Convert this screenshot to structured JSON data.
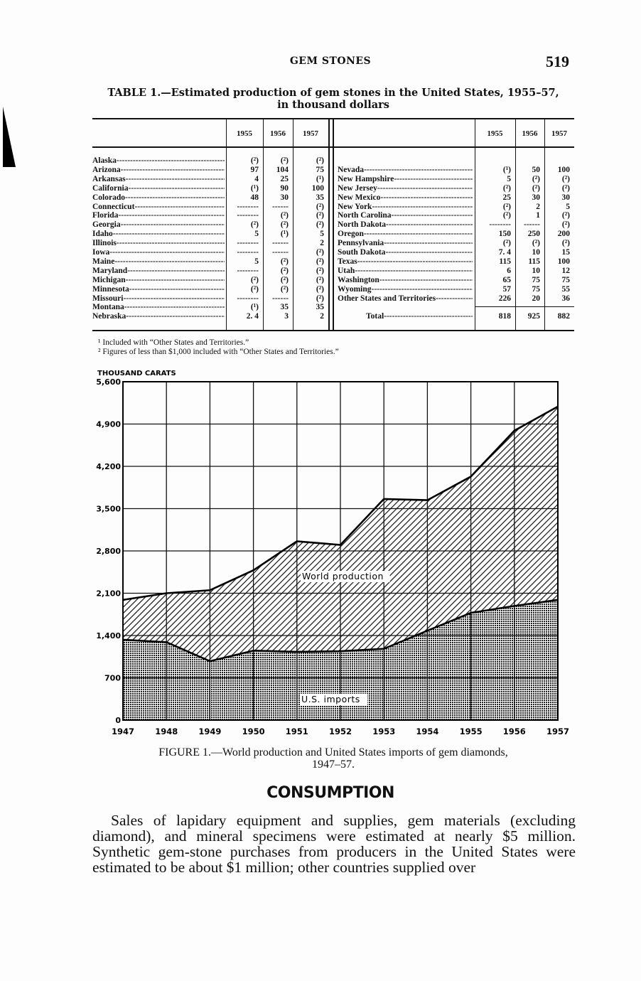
{
  "header": {
    "running_head": "GEM STONES",
    "page_number": "519"
  },
  "table": {
    "title_line1": "TABLE 1.—Estimated production of gem stones in the United States, 1955–57,",
    "title_line2": "in thousand dollars",
    "columns": [
      "1955",
      "1956",
      "1957"
    ],
    "left_rows": [
      {
        "state": "Alaska",
        "v": [
          "(²)",
          "(²)",
          "(²)"
        ]
      },
      {
        "state": "Arizona",
        "v": [
          "97",
          "104",
          "75"
        ]
      },
      {
        "state": "Arkansas",
        "v": [
          "4",
          "25",
          "(¹)"
        ]
      },
      {
        "state": "California",
        "v": [
          "(¹)",
          "90",
          "100"
        ]
      },
      {
        "state": "Colorado",
        "v": [
          "48",
          "30",
          "35"
        ]
      },
      {
        "state": "Connecticut",
        "v": [
          "--------",
          "------",
          "(²)"
        ]
      },
      {
        "state": "Florida",
        "v": [
          "--------",
          "(²)",
          "(²)"
        ]
      },
      {
        "state": "Georgia",
        "v": [
          "(²)",
          "(²)",
          "(²)"
        ]
      },
      {
        "state": "Idaho",
        "v": [
          "5",
          "(¹)",
          "5"
        ]
      },
      {
        "state": "Illinois",
        "v": [
          "--------",
          "------",
          "2"
        ]
      },
      {
        "state": "Iowa",
        "v": [
          "--------",
          "------",
          "(²)"
        ]
      },
      {
        "state": "Maine",
        "v": [
          "5",
          "(²)",
          "(²)"
        ]
      },
      {
        "state": "Maryland",
        "v": [
          "--------",
          "(²)",
          "(²)"
        ]
      },
      {
        "state": "Michigan",
        "v": [
          "(²)",
          "(²)",
          "(²)"
        ]
      },
      {
        "state": "Minnesota",
        "v": [
          "(²)",
          "(²)",
          "(²)"
        ]
      },
      {
        "state": "Missouri",
        "v": [
          "--------",
          "------",
          "(²)"
        ]
      },
      {
        "state": "Montana",
        "v": [
          "(¹)",
          "35",
          "35"
        ]
      },
      {
        "state": "Nebraska",
        "v": [
          "2. 4",
          "3",
          "2"
        ]
      }
    ],
    "right_rows": [
      {
        "state": "Nevada",
        "v": [
          "(¹)",
          "50",
          "100"
        ]
      },
      {
        "state": "New Hampshire",
        "v": [
          "5",
          "(²)",
          "(²)"
        ]
      },
      {
        "state": "New Jersey",
        "v": [
          "(²)",
          "(²)",
          "(²)"
        ]
      },
      {
        "state": "New Mexico",
        "v": [
          "25",
          "30",
          "30"
        ]
      },
      {
        "state": "New York",
        "v": [
          "(²)",
          "2",
          "5"
        ]
      },
      {
        "state": "North Carolina",
        "v": [
          "(²)",
          "1",
          "(²)"
        ]
      },
      {
        "state": "North Dakota",
        "v": [
          "--------",
          "------",
          "(²)"
        ]
      },
      {
        "state": "Oregon",
        "v": [
          "150",
          "250",
          "200"
        ]
      },
      {
        "state": "Pennsylvania",
        "v": [
          "(²)",
          "(²)",
          "(²)"
        ]
      },
      {
        "state": "South Dakota",
        "v": [
          "7. 4",
          "10",
          "15"
        ]
      },
      {
        "state": "Texas",
        "v": [
          "115",
          "115",
          "100"
        ]
      },
      {
        "state": "Utah",
        "v": [
          "6",
          "10",
          "12"
        ]
      },
      {
        "state": "Washington",
        "v": [
          "65",
          "75",
          "75"
        ]
      },
      {
        "state": "Wyoming",
        "v": [
          "57",
          "75",
          "55"
        ]
      },
      {
        "state": "Other States and Territories",
        "v": [
          "226",
          "20",
          "36"
        ]
      }
    ],
    "total": {
      "label": "Total",
      "v": [
        "818",
        "925",
        "882"
      ]
    },
    "footnotes": [
      "¹ Included with “Other States and Territories.”",
      "² Figures of less than $1,000 included with “Other States and Territories.”"
    ]
  },
  "chart_data": {
    "type": "area",
    "ylabel": "THOUSAND CARATS",
    "x": [
      1947,
      1948,
      1949,
      1950,
      1951,
      1952,
      1953,
      1954,
      1955,
      1956,
      1957
    ],
    "x_tick_labels": [
      "1947",
      "1948",
      "1949",
      "1950",
      "1951",
      "1952",
      "1953",
      "1954",
      "1955",
      "1956",
      "1957"
    ],
    "ylim": [
      0,
      5600
    ],
    "y_ticks": [
      0,
      700,
      1400,
      2100,
      2800,
      3500,
      4200,
      4900,
      5600
    ],
    "y_tick_labels": [
      "0",
      "700",
      "1,400",
      "2,100",
      "2,800",
      "3,500",
      "4,200",
      "4,900",
      "5,600"
    ],
    "grid": true,
    "series": [
      {
        "name": "World production",
        "values": [
          1990,
          2100,
          2150,
          2480,
          2960,
          2900,
          3660,
          3640,
          4030,
          4790,
          5190
        ],
        "pattern": "diagonal-hatch"
      },
      {
        "name": "U.S. imports",
        "values": [
          1330,
          1290,
          975,
          1150,
          1130,
          1140,
          1180,
          1480,
          1775,
          1890,
          1990
        ],
        "pattern": "dots"
      }
    ],
    "caption_line1": "FIGURE 1.—World production and United States imports of gem diamonds,",
    "caption_line2": "1947–57."
  },
  "section": {
    "heading": "CONSUMPTION",
    "paragraph": "Sales of lapidary equipment and supplies, gem materials (excluding diamond), and mineral specimens were estimated at nearly $5 million. Synthetic gem-stone purchases from producers in the United States were estimated to be about $1 million; other countries supplied over"
  }
}
